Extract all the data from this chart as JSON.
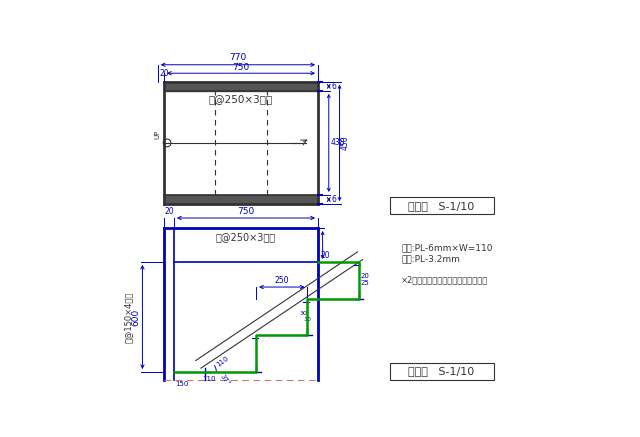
{
  "bg_color": "#ffffff",
  "blue": "#0000bb",
  "dark": "#333333",
  "green": "#009900",
  "gray": "#555555",
  "plan_title": "平面図   S-1/10",
  "elev_title": "立面図   S-1/10",
  "note1": "段板:PL-6mm×W=110",
  "note2": "段板:PL-3.2mm",
  "note3": "×2段目を除いてグレー鎖止め仕上げ",
  "label_250x3": "(@250×3段)",
  "label_150x4": "(@150×4段)"
}
